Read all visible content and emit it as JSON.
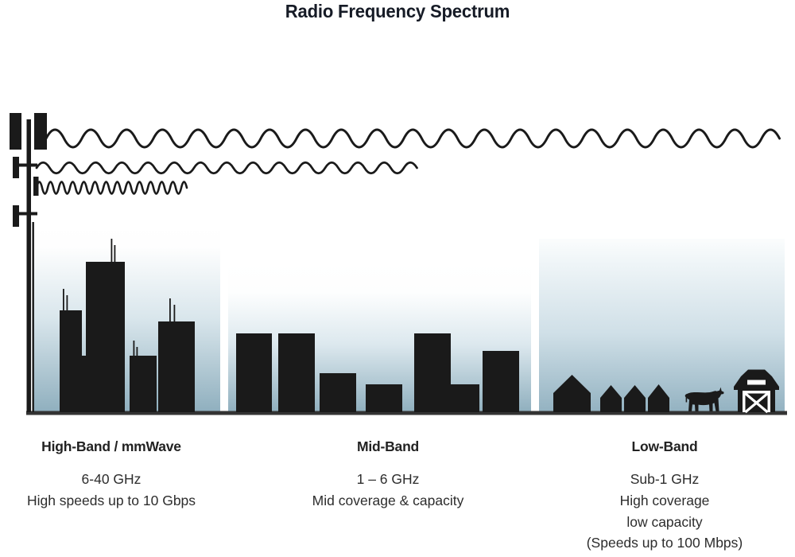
{
  "title": "Radio Frequency Spectrum",
  "bands": [
    {
      "id": "high",
      "heading": "High-Band / mmWave",
      "lines": [
        "6-40 GHz",
        "High speeds up to 10 Gbps"
      ]
    },
    {
      "id": "mid",
      "heading": "Mid-Band",
      "lines": [
        "1 – 6 GHz",
        "Mid coverage & capacity"
      ]
    },
    {
      "id": "low",
      "heading": "Low-Band",
      "lines": [
        "Sub-1 GHz",
        "High coverage",
        "low capacity",
        "(Speeds up to 100 Mbps)"
      ]
    }
  ],
  "icons": [
    "cell-tower-icon",
    "long-wavelength-wave-icon",
    "medium-wavelength-wave-icon",
    "short-wavelength-wave-icon",
    "city-skyline-icon",
    "suburb-houses-icon",
    "cow-icon",
    "barn-icon"
  ],
  "colors": {
    "silhouette": "#1a1a1a",
    "sky_top": "#ffffff",
    "sky_bottom": "#8fafbe",
    "ground": "#333333",
    "title_text": "#161b26",
    "body_text": "#2d2d2d"
  }
}
